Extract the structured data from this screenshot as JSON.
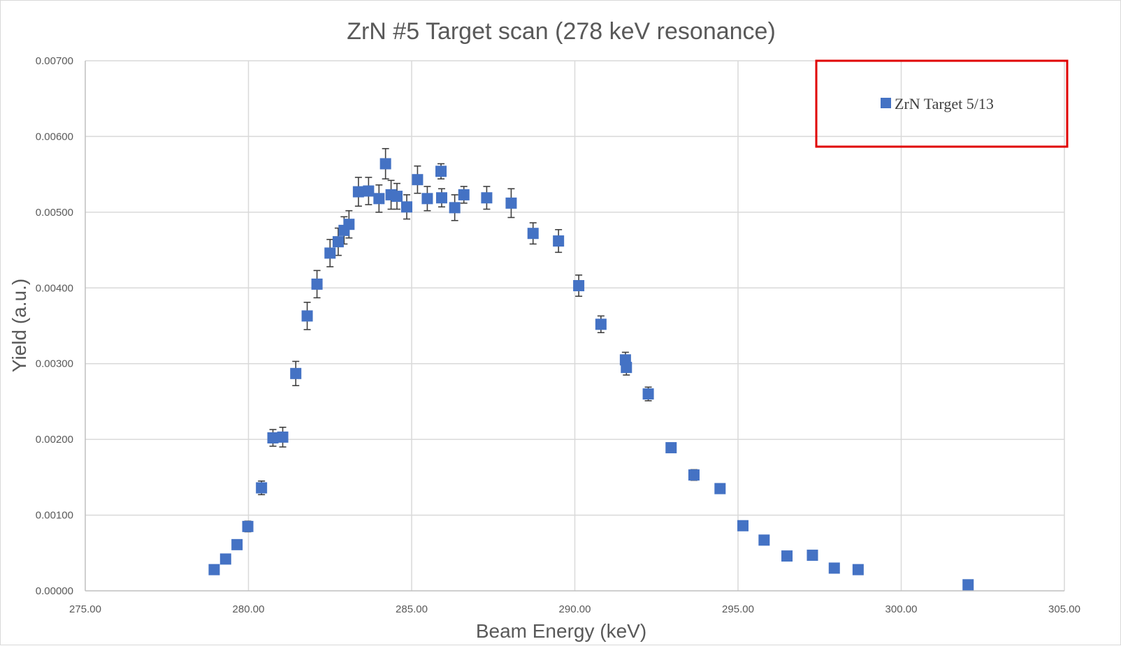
{
  "chart_data": {
    "type": "scatter",
    "title": "ZrN #5 Target scan (278 keV resonance)",
    "xlabel": "Beam Energy (keV)",
    "ylabel": "Yield (a.u.)",
    "xlim": [
      275,
      305
    ],
    "ylim": [
      0,
      0.007
    ],
    "x_ticks": [
      275,
      280,
      285,
      290,
      295,
      300,
      305
    ],
    "x_tick_labels": [
      "275.00",
      "280.00",
      "285.00",
      "290.00",
      "295.00",
      "300.00",
      "305.00"
    ],
    "y_ticks": [
      0,
      0.001,
      0.002,
      0.003,
      0.004,
      0.005,
      0.006,
      0.007
    ],
    "y_tick_labels": [
      "0.00000",
      "0.00100",
      "0.00200",
      "0.00300",
      "0.00400",
      "0.00500",
      "0.00600",
      "0.00700"
    ],
    "grid": true,
    "legend_position": "top-right",
    "legend_highlight_color": "#e00000",
    "marker": "square",
    "series": [
      {
        "name": "ZrN Target 5/13",
        "color": "#4472c4",
        "points": [
          {
            "x": 278.95,
            "y": 0.00028,
            "err": 4e-05
          },
          {
            "x": 279.3,
            "y": 0.00042,
            "err": 4e-05
          },
          {
            "x": 279.65,
            "y": 0.00061,
            "err": 5e-05
          },
          {
            "x": 279.98,
            "y": 0.00085,
            "err": 7e-05
          },
          {
            "x": 280.4,
            "y": 0.00136,
            "err": 9e-05
          },
          {
            "x": 280.75,
            "y": 0.00202,
            "err": 0.00011
          },
          {
            "x": 281.05,
            "y": 0.00203,
            "err": 0.00013
          },
          {
            "x": 281.45,
            "y": 0.00287,
            "err": 0.00016
          },
          {
            "x": 281.8,
            "y": 0.00363,
            "err": 0.00018
          },
          {
            "x": 282.1,
            "y": 0.00405,
            "err": 0.00018
          },
          {
            "x": 282.5,
            "y": 0.00446,
            "err": 0.00018
          },
          {
            "x": 282.75,
            "y": 0.00461,
            "err": 0.00018
          },
          {
            "x": 282.93,
            "y": 0.00476,
            "err": 0.00018
          },
          {
            "x": 283.08,
            "y": 0.00484,
            "err": 0.00018
          },
          {
            "x": 283.37,
            "y": 0.00527,
            "err": 0.00019
          },
          {
            "x": 283.68,
            "y": 0.00528,
            "err": 0.00018
          },
          {
            "x": 284.0,
            "y": 0.00518,
            "err": 0.00018
          },
          {
            "x": 284.2,
            "y": 0.00564,
            "err": 0.0002
          },
          {
            "x": 284.37,
            "y": 0.00523,
            "err": 0.00019
          },
          {
            "x": 284.55,
            "y": 0.00521,
            "err": 0.00017
          },
          {
            "x": 284.85,
            "y": 0.00507,
            "err": 0.00016
          },
          {
            "x": 285.18,
            "y": 0.00543,
            "err": 0.00018
          },
          {
            "x": 285.48,
            "y": 0.00518,
            "err": 0.00016
          },
          {
            "x": 285.9,
            "y": 0.00554,
            "err": 0.0001
          },
          {
            "x": 285.92,
            "y": 0.00519,
            "err": 0.00012
          },
          {
            "x": 286.32,
            "y": 0.00506,
            "err": 0.00017
          },
          {
            "x": 286.6,
            "y": 0.00523,
            "err": 0.00011
          },
          {
            "x": 287.3,
            "y": 0.00519,
            "err": 0.00015
          },
          {
            "x": 288.05,
            "y": 0.00512,
            "err": 0.00019
          },
          {
            "x": 288.72,
            "y": 0.00472,
            "err": 0.00014
          },
          {
            "x": 289.5,
            "y": 0.00462,
            "err": 0.00015
          },
          {
            "x": 290.12,
            "y": 0.00403,
            "err": 0.00014
          },
          {
            "x": 290.8,
            "y": 0.00352,
            "err": 0.00011
          },
          {
            "x": 291.55,
            "y": 0.00305,
            "err": 0.0001
          },
          {
            "x": 291.58,
            "y": 0.00295,
            "err": 0.0001
          },
          {
            "x": 292.25,
            "y": 0.0026,
            "err": 9e-05
          },
          {
            "x": 292.95,
            "y": 0.00189,
            "err": 6e-05
          },
          {
            "x": 293.65,
            "y": 0.00153,
            "err": 7e-05
          },
          {
            "x": 294.45,
            "y": 0.00135,
            "err": 5e-05
          },
          {
            "x": 295.15,
            "y": 0.00086,
            "err": 5e-05
          },
          {
            "x": 295.8,
            "y": 0.00067,
            "err": 4e-05
          },
          {
            "x": 296.5,
            "y": 0.00046,
            "err": 4e-05
          },
          {
            "x": 297.28,
            "y": 0.00047,
            "err": 4e-05
          },
          {
            "x": 297.95,
            "y": 0.0003,
            "err": 4e-05
          },
          {
            "x": 298.68,
            "y": 0.00028,
            "err": 4e-05
          },
          {
            "x": 302.05,
            "y": 8e-05,
            "err": 3e-05
          }
        ]
      }
    ]
  }
}
